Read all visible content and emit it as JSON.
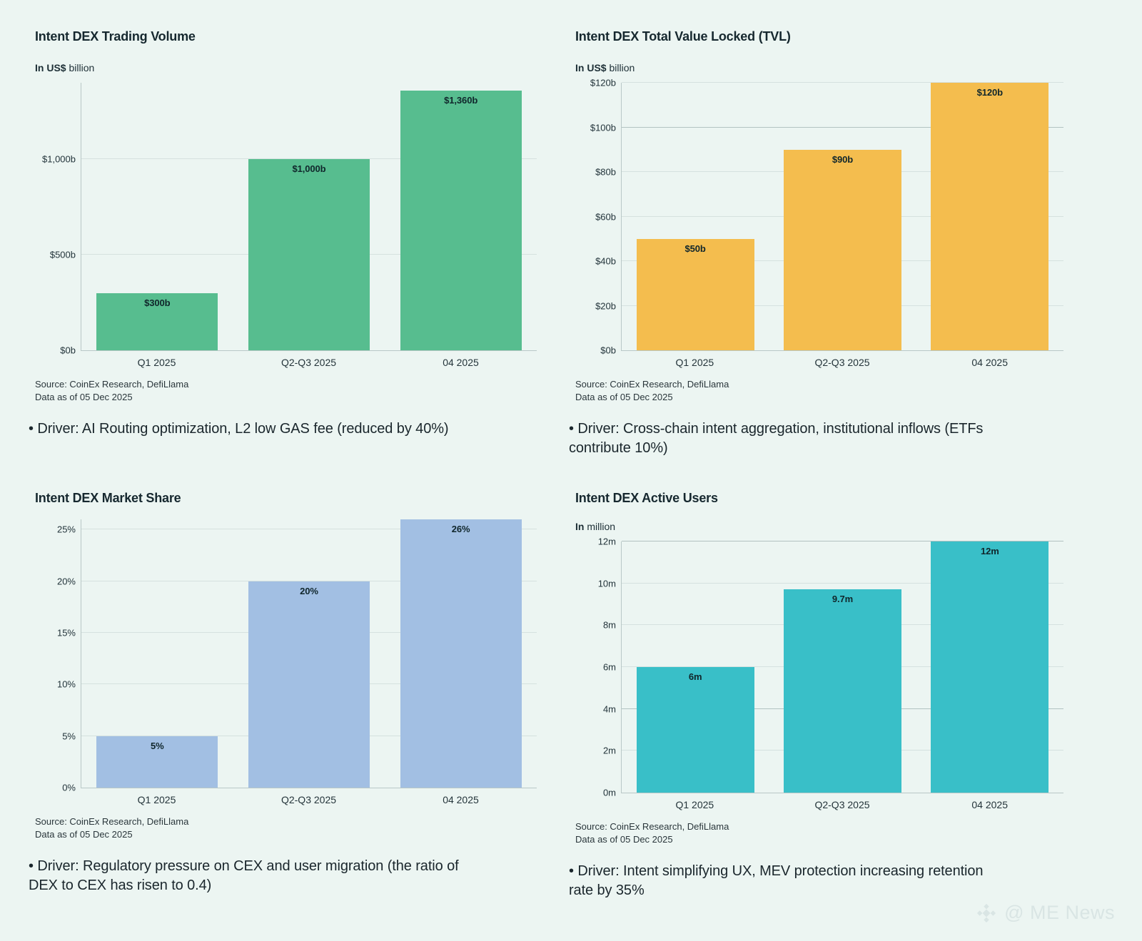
{
  "page": {
    "background": "#ecf5f2",
    "watermark_text": "@ ME News"
  },
  "chart_data": [
    {
      "type": "bar",
      "title": "Intent DEX Trading Volume",
      "unit_bold": "In US$",
      "unit_rest": " billion",
      "categories": [
        "Q1 2025",
        "Q2-Q3 2025",
        "04 2025"
      ],
      "values": [
        300,
        1000,
        1360
      ],
      "bar_labels": [
        "$300b",
        "$1,000b",
        "$1,360b"
      ],
      "ylim": [
        0,
        1400
      ],
      "yticks": [
        {
          "v": 0,
          "label": "$0b"
        },
        {
          "v": 500,
          "label": "$500b"
        },
        {
          "v": 1000,
          "label": "$1,000b"
        }
      ],
      "grid": true,
      "legend": "none",
      "bar_color": "#57bd8f",
      "source_line1": "Source: CoinEx Research, DefiLlama",
      "source_line2": "Data as of 05 Dec 2025",
      "driver": "• Driver: AI Routing optimization, L2 low GAS fee (reduced by 40%)"
    },
    {
      "type": "bar",
      "title": "Intent DEX Total Value Locked (TVL)",
      "unit_bold": "In US$",
      "unit_rest": " billion",
      "categories": [
        "Q1 2025",
        "Q2-Q3 2025",
        "04 2025"
      ],
      "values": [
        50,
        90,
        120
      ],
      "bar_labels": [
        "$50b",
        "$90b",
        "$120b"
      ],
      "ylim": [
        0,
        120
      ],
      "yticks": [
        {
          "v": 0,
          "label": "$0b"
        },
        {
          "v": 20,
          "label": "$20b"
        },
        {
          "v": 40,
          "label": "$40b"
        },
        {
          "v": 60,
          "label": "$60b"
        },
        {
          "v": 80,
          "label": "$80b"
        },
        {
          "v": 100,
          "label": "$100b",
          "strong": true
        },
        {
          "v": 120,
          "label": "$120b"
        }
      ],
      "grid": true,
      "legend": "none",
      "bar_color": "#f4bd4e",
      "source_line1": "Source: CoinEx Research, DefiLlama",
      "source_line2": "Data as of 05 Dec 2025",
      "driver": "• Driver: Cross-chain intent aggregation, institutional inflows (ETFs\ncontribute 10%)"
    },
    {
      "type": "bar",
      "title": "Intent DEX Market Share",
      "unit_bold": "",
      "unit_rest": "",
      "categories": [
        "Q1 2025",
        "Q2-Q3 2025",
        "04 2025"
      ],
      "values": [
        5,
        20,
        26
      ],
      "bar_labels": [
        "5%",
        "20%",
        "26%"
      ],
      "ylim": [
        0,
        26
      ],
      "yticks": [
        {
          "v": 0,
          "label": "0%"
        },
        {
          "v": 5,
          "label": "5%"
        },
        {
          "v": 10,
          "label": "10%"
        },
        {
          "v": 15,
          "label": "15%"
        },
        {
          "v": 20,
          "label": "20%"
        },
        {
          "v": 25,
          "label": "25%"
        }
      ],
      "grid": true,
      "legend": "none",
      "bar_color": "#a2bfe3",
      "source_line1": "Source: CoinEx Research, DefiLlama",
      "source_line2": "Data as of 05 Dec 2025",
      "driver": "• Driver: Regulatory pressure on CEX and user migration (the ratio of\nDEX to CEX has risen to 0.4)"
    },
    {
      "type": "bar",
      "title": "Intent DEX Active Users",
      "unit_bold": "In",
      "unit_rest": " million",
      "categories": [
        "Q1 2025",
        "Q2-Q3 2025",
        "04 2025"
      ],
      "values": [
        6,
        9.7,
        12
      ],
      "bar_labels": [
        "6m",
        "9.7m",
        "12m"
      ],
      "ylim": [
        0,
        12
      ],
      "yticks": [
        {
          "v": 0,
          "label": "0m"
        },
        {
          "v": 2,
          "label": "2m"
        },
        {
          "v": 4,
          "label": "4m",
          "strong": true
        },
        {
          "v": 6,
          "label": "6m"
        },
        {
          "v": 8,
          "label": "8m"
        },
        {
          "v": 10,
          "label": "10m"
        },
        {
          "v": 12,
          "label": "12m",
          "strong": true
        }
      ],
      "grid": true,
      "legend": "none",
      "bar_color": "#39bfc8",
      "source_line1": "Source: CoinEx Research, DefiLlama",
      "source_line2": "Data as of 05 Dec 2025",
      "driver": "• Driver: Intent simplifying UX, MEV protection increasing retention\nrate by 35%"
    }
  ]
}
